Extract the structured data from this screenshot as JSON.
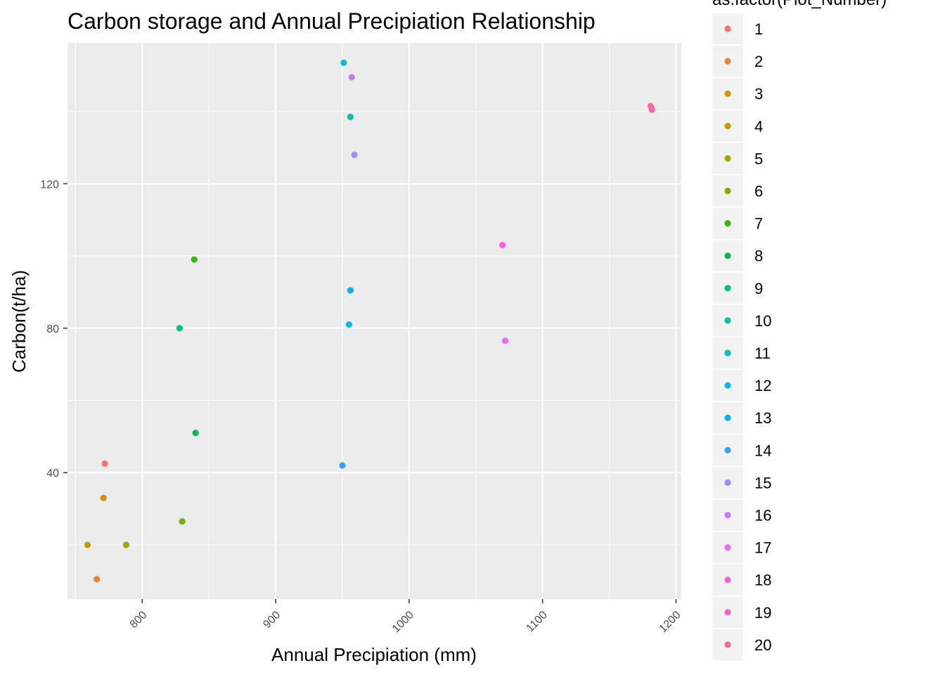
{
  "chart_data": {
    "type": "scatter",
    "title": "Carbon storage and Annual Precipiation Relationship",
    "xlabel": "Annual Precipiation (mm)",
    "ylabel": "Carbon(t/ha)",
    "xlim": [
      744,
      1204
    ],
    "ylim": [
      5,
      159
    ],
    "x_ticks": [
      800,
      900,
      1000,
      1100,
      1200
    ],
    "y_ticks": [
      40,
      80,
      120
    ],
    "grid": true,
    "legend_position": "right",
    "legend_title": "as.factor(Plot_Number)",
    "series": [
      {
        "name": "1",
        "color": "#F8766D",
        "points": [
          {
            "x": 772,
            "y": 42.5
          }
        ]
      },
      {
        "name": "2",
        "color": "#EA8331",
        "points": [
          {
            "x": 766,
            "y": 10.5
          }
        ]
      },
      {
        "name": "3",
        "color": "#D89000",
        "points": [
          {
            "x": 771,
            "y": 33
          }
        ]
      },
      {
        "name": "4",
        "color": "#C09B00",
        "points": [
          {
            "x": 759,
            "y": 20
          }
        ]
      },
      {
        "name": "5",
        "color": "#A3A500",
        "points": [
          {
            "x": 788,
            "y": 20
          }
        ]
      },
      {
        "name": "6",
        "color": "#7CAE00",
        "points": [
          {
            "x": 830,
            "y": 26.5
          }
        ]
      },
      {
        "name": "7",
        "color": "#39B600",
        "points": [
          {
            "x": 839,
            "y": 99
          }
        ]
      },
      {
        "name": "8",
        "color": "#00BB4E",
        "points": [
          {
            "x": 840,
            "y": 51
          }
        ]
      },
      {
        "name": "9",
        "color": "#00BF7D",
        "points": [
          {
            "x": 828,
            "y": 80
          }
        ]
      },
      {
        "name": "10",
        "color": "#00C1A3",
        "points": [
          {
            "x": 956,
            "y": 138.5
          }
        ]
      },
      {
        "name": "11",
        "color": "#00BFC4",
        "points": [
          {
            "x": 951,
            "y": 153.5
          }
        ]
      },
      {
        "name": "12",
        "color": "#00BAE0",
        "points": [
          {
            "x": 955,
            "y": 81
          }
        ]
      },
      {
        "name": "13",
        "color": "#00B0F6",
        "points": [
          {
            "x": 956,
            "y": 90.5
          }
        ]
      },
      {
        "name": "14",
        "color": "#35A2FF",
        "points": [
          {
            "x": 950,
            "y": 42
          }
        ]
      },
      {
        "name": "15",
        "color": "#9590FF",
        "points": [
          {
            "x": 959,
            "y": 128
          }
        ]
      },
      {
        "name": "16",
        "color": "#C77CFF",
        "points": [
          {
            "x": 957,
            "y": 149.5
          }
        ]
      },
      {
        "name": "17",
        "color": "#E76BF3",
        "points": [
          {
            "x": 1072,
            "y": 76.5
          }
        ]
      },
      {
        "name": "18",
        "color": "#FA62DB",
        "points": [
          {
            "x": 1070,
            "y": 103
          }
        ]
      },
      {
        "name": "19",
        "color": "#FF62BC",
        "points": [
          {
            "x": 1182,
            "y": 140.5
          }
        ]
      },
      {
        "name": "20",
        "color": "#FF6C91",
        "points": [
          {
            "x": 1181,
            "y": 141.5
          }
        ]
      }
    ]
  }
}
